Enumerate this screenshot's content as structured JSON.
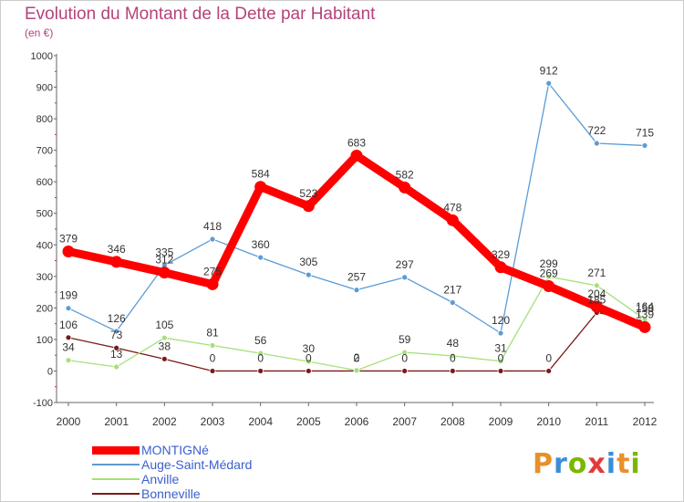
{
  "title": "Evolution du Montant de la Dette par Habitant",
  "subtitle": "(en €)",
  "logo_text": "Proxiti",
  "logo_colors": [
    "#e8902a",
    "#3a8ed8",
    "#7ab800",
    "#e23a3a",
    "#3a8ed8",
    "#e8902a",
    "#7ab800"
  ],
  "chart_data": {
    "type": "line",
    "x": [
      "2000",
      "2001",
      "2002",
      "2003",
      "2004",
      "2005",
      "2006",
      "2007",
      "2008",
      "2009",
      "2010",
      "2011",
      "2012"
    ],
    "ylim": [
      -100,
      1000
    ],
    "yticks": [
      -100,
      0,
      100,
      200,
      300,
      400,
      500,
      600,
      700,
      800,
      900,
      1000
    ],
    "grid": false,
    "legend_position": "bottom-left",
    "series": [
      {
        "name": "MONTIGNé",
        "color": "#ff0000",
        "values": [
          379,
          346,
          312,
          275,
          584,
          523,
          683,
          582,
          478,
          329,
          269,
          204,
          139
        ],
        "labels": [
          "379",
          "346",
          "312",
          "275",
          "584",
          "523",
          "683",
          "582",
          "478",
          "329",
          "",
          "",
          ""
        ]
      },
      {
        "name": "Auge-Saint-Médard",
        "color": "#5b9bd5",
        "values": [
          199,
          126,
          335,
          418,
          360,
          305,
          257,
          297,
          217,
          120,
          912,
          722,
          715
        ],
        "labels": [
          "199",
          "126",
          "335",
          "418",
          "360",
          "305",
          "257",
          "297",
          "217",
          "120",
          "912",
          "722",
          "715"
        ]
      },
      {
        "name": "Anville",
        "color": "#a6e07a",
        "values": [
          34,
          13,
          105,
          81,
          56,
          30,
          2,
          59,
          48,
          31,
          299,
          271,
          164
        ],
        "labels": [
          "34",
          "13",
          "105",
          "81",
          "56",
          "30",
          "2",
          "59",
          "48",
          "31",
          "299",
          "271",
          "164"
        ]
      },
      {
        "name": "Bonneville",
        "color": "#7a1a1a",
        "values": [
          106,
          73,
          38,
          0,
          0,
          0,
          0,
          0,
          0,
          0,
          0,
          185,
          158
        ],
        "labels": [
          "106",
          "73",
          "38",
          "0",
          "0",
          "0",
          "0",
          "0",
          "0",
          "0",
          "0",
          "185",
          "158"
        ]
      }
    ],
    "annotations": [
      "269",
      "204",
      "139"
    ]
  }
}
